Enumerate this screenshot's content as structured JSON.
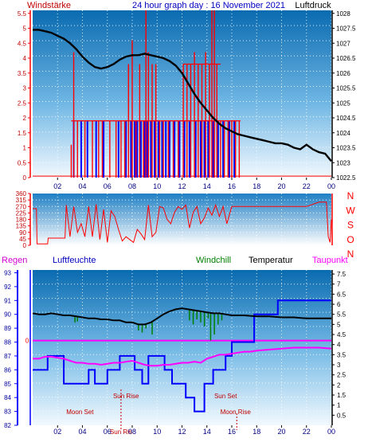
{
  "header": {
    "left_label": "Windstärke",
    "title": "24 hour graph day : 16 November 2021",
    "right_label": "Luftdruck"
  },
  "x_ticks": [
    "02",
    "04",
    "06",
    "08",
    "10",
    "12",
    "14",
    "16",
    "18",
    "20",
    "22",
    "00"
  ],
  "colors": {
    "red": "#ff0000",
    "blue": "#0000ff",
    "black": "#000000",
    "green": "#008000",
    "magenta": "#ff00ff",
    "dark_red": "#c00000"
  },
  "chart_data": [
    {
      "type": "line",
      "title": "24 hour graph day : 16 November 2021",
      "x_range": [
        0,
        24
      ],
      "x_tick_labels": [
        "02",
        "04",
        "06",
        "08",
        "10",
        "12",
        "14",
        "16",
        "18",
        "20",
        "22",
        "00"
      ],
      "left_axis": {
        "label": "Windstärke",
        "ticks": [
          "0",
          "0.5",
          "1",
          "1.5",
          "2",
          "2.5",
          "3",
          "3.5",
          "4",
          "4.5",
          "5",
          "5.5"
        ],
        "ylim": [
          0,
          5.6
        ]
      },
      "right_axis": {
        "label": "Luftdruck",
        "ticks": [
          "1022.5",
          "1023",
          "1023.5",
          "1024",
          "1024.5",
          "1025",
          "1025.5",
          "1026",
          "1026.5",
          "1027",
          "1027.5",
          "1028"
        ],
        "ylim": [
          1022.5,
          1028.1
        ]
      },
      "series": [
        {
          "name": "Luftdruck",
          "axis": "right",
          "color": "#000000",
          "x": [
            0,
            0.5,
            1,
            1.5,
            2,
            2.5,
            3,
            3.5,
            4,
            4.5,
            5,
            5.5,
            6,
            6.5,
            7,
            7.5,
            8,
            8.5,
            9,
            9.5,
            10,
            10.5,
            11,
            11.5,
            12,
            12.5,
            13,
            13.5,
            14,
            14.5,
            15,
            15.5,
            16,
            16.5,
            17,
            17.5,
            18,
            18.5,
            19,
            19.5,
            20,
            20.5,
            21,
            21.5,
            22,
            22.5,
            23,
            23.5,
            24
          ],
          "y": [
            1027.45,
            1027.45,
            1027.4,
            1027.35,
            1027.25,
            1027.15,
            1027.0,
            1026.8,
            1026.55,
            1026.35,
            1026.2,
            1026.15,
            1026.2,
            1026.3,
            1026.45,
            1026.55,
            1026.6,
            1026.6,
            1026.65,
            1026.6,
            1026.55,
            1026.5,
            1026.4,
            1026.25,
            1026.0,
            1025.65,
            1025.3,
            1025.0,
            1024.75,
            1024.5,
            1024.3,
            1024.15,
            1024.05,
            1023.95,
            1023.9,
            1023.85,
            1023.8,
            1023.75,
            1023.7,
            1023.65,
            1023.65,
            1023.6,
            1023.5,
            1023.45,
            1023.6,
            1023.45,
            1023.35,
            1023.3,
            1023.05
          ]
        },
        {
          "name": "Windgeschwindigkeit",
          "axis": "left",
          "color": "#ff0000",
          "render": "spikes",
          "x": [
            3.1,
            3.3,
            3.6,
            4.2,
            4.8,
            5.3,
            5.6,
            6.2,
            6.7,
            7.1,
            7.4,
            7.7,
            8.0,
            8.3,
            8.6,
            8.9,
            9.1,
            9.3,
            9.6,
            9.9,
            10.2,
            10.5,
            10.9,
            11.3,
            11.7,
            12.1,
            12.4,
            12.7,
            13.0,
            13.3,
            13.6,
            13.9,
            14.2,
            14.4,
            14.6,
            14.8,
            15.1,
            15.4,
            15.7,
            16.0,
            16.3,
            16.6
          ],
          "y": [
            1.1,
            4.2,
            1.9,
            1.9,
            1.9,
            1.9,
            1.9,
            1.9,
            1.9,
            1.9,
            1.9,
            3.8,
            4.6,
            1.9,
            3.8,
            1.9,
            5.6,
            4.2,
            3.8,
            3.8,
            1.9,
            1.9,
            1.9,
            1.9,
            1.9,
            3.8,
            3.8,
            3.8,
            4.2,
            3.8,
            3.8,
            4.2,
            3.8,
            5.6,
            5.6,
            3.8,
            1.9,
            1.9,
            1.9,
            1.9,
            1.9,
            1.9
          ]
        },
        {
          "name": "Windböen",
          "axis": "left",
          "color": "#0000ff",
          "render": "spikes",
          "x": [
            3.3,
            3.9,
            4.4,
            5.1,
            5.7,
            6.9,
            7.5,
            7.9,
            8.2,
            8.4,
            8.7,
            9.0,
            9.2,
            9.5,
            9.8,
            10.1,
            10.4,
            10.7,
            11.0,
            11.4,
            11.8,
            12.2,
            12.6,
            13.1,
            13.5,
            13.8,
            14.1,
            14.5,
            14.9,
            15.3,
            15.8,
            16.2
          ],
          "y": [
            1.9,
            1.9,
            1.9,
            1.9,
            1.9,
            1.9,
            1.9,
            1.9,
            1.9,
            1.9,
            1.9,
            1.9,
            1.9,
            1.9,
            1.9,
            1.9,
            1.9,
            1.9,
            1.9,
            1.9,
            1.9,
            1.9,
            1.9,
            1.9,
            1.9,
            1.9,
            1.9,
            1.9,
            1.9,
            1.9,
            1.9,
            1.9
          ]
        }
      ]
    },
    {
      "type": "line",
      "title": "",
      "x_range": [
        0,
        24
      ],
      "y_axis": {
        "ticks": [
          "0",
          "45",
          "90",
          "135",
          "180",
          "225",
          "270",
          "315",
          "360"
        ],
        "ylim": [
          0,
          360
        ]
      },
      "compass_labels": [
        "N",
        "W",
        "S",
        "O",
        "N"
      ],
      "series": [
        {
          "name": "Windrichtung",
          "color": "#ff0000",
          "x": [
            0,
            0.3,
            0.35,
            1.2,
            1.25,
            2.6,
            2.7,
            3.0,
            3.3,
            3.6,
            3.9,
            4.2,
            4.5,
            4.8,
            5.1,
            5.4,
            5.7,
            6.0,
            6.3,
            6.6,
            6.9,
            7.2,
            7.5,
            7.8,
            8.1,
            8.4,
            8.7,
            9.0,
            9.3,
            9.6,
            9.9,
            10.2,
            10.5,
            10.8,
            11.1,
            11.4,
            11.7,
            12.0,
            12.3,
            12.6,
            12.9,
            13.2,
            13.5,
            13.8,
            14.1,
            14.4,
            14.7,
            15.0,
            15.3,
            15.6,
            16.0,
            16.5,
            17,
            18,
            19,
            20,
            21,
            22,
            23.0,
            23.3,
            23.6,
            23.75,
            23.9,
            24.0
          ],
          "y": [
            255,
            255,
            10,
            10,
            50,
            50,
            280,
            60,
            270,
            90,
            150,
            60,
            270,
            60,
            285,
            40,
            250,
            20,
            240,
            200,
            110,
            30,
            60,
            40,
            20,
            110,
            80,
            40,
            280,
            60,
            90,
            270,
            260,
            180,
            150,
            230,
            270,
            250,
            280,
            120,
            230,
            270,
            150,
            190,
            260,
            210,
            280,
            200,
            270,
            150,
            270,
            270,
            270,
            270,
            270,
            270,
            270,
            270,
            300,
            300,
            300,
            60,
            20,
            180
          ]
        }
      ]
    },
    {
      "type": "line",
      "title": "",
      "x_range": [
        0,
        24
      ],
      "left_axis": {
        "label": "Regen",
        "ticks": [
          "82",
          "83",
          "84",
          "85",
          "86",
          "87",
          "88",
          "89",
          "90",
          "91",
          "92",
          "93"
        ],
        "ylim": [
          82,
          93.2
        ]
      },
      "right_axis": {
        "label": "Temperatur",
        "ticks": [
          "0.5",
          "1",
          "1.5",
          "2",
          "2.5",
          "3",
          "3.5",
          "4",
          "4.5",
          "5",
          "5.5",
          "6",
          "6.5",
          "7",
          "7.5"
        ],
        "ylim": [
          0,
          7.7
        ]
      },
      "legend": [
        "Regen",
        "Luftfeuchte",
        "Windchill",
        "Temperatur",
        "Taupunkt"
      ],
      "zero_marker": "0",
      "annotations": [
        "Sun Rise",
        "Sun Set",
        "Moon Set",
        "Moon Rise",
        "Sun Ris"
      ],
      "series": [
        {
          "name": "Luftfeuchte",
          "axis": "left",
          "color": "#0000ff",
          "x": [
            0,
            1.2,
            1.2,
            2.5,
            2.5,
            4.5,
            4.5,
            5.0,
            5.0,
            6.0,
            6.0,
            7.0,
            7.0,
            8.2,
            8.2,
            8.8,
            8.8,
            9.3,
            9.3,
            10.6,
            10.6,
            11.2,
            11.2,
            12.3,
            12.3,
            13.0,
            13.0,
            13.8,
            13.8,
            14.5,
            14.5,
            15.5,
            15.5,
            16.0,
            16.0,
            17.8,
            17.8,
            19.7,
            19.7,
            24
          ],
          "y": [
            86,
            86,
            87,
            87,
            85,
            85,
            86,
            86,
            85,
            85,
            86,
            86,
            87,
            87,
            86,
            86,
            85,
            85,
            87,
            87,
            86,
            86,
            85,
            85,
            84,
            84,
            83,
            83,
            85,
            85,
            86,
            86,
            87,
            87,
            88,
            88,
            90,
            90,
            91,
            91
          ]
        },
        {
          "name": "Temperatur",
          "axis": "right",
          "color": "#000000",
          "x": [
            0,
            0.5,
            1,
            1.5,
            2,
            2.5,
            3,
            3.5,
            4,
            4.5,
            5,
            5.5,
            6,
            6.5,
            7,
            7.5,
            8,
            8.5,
            9,
            9.5,
            10,
            10.5,
            11,
            11.5,
            12,
            12.5,
            13,
            13.5,
            14,
            14.5,
            15,
            15.5,
            16,
            16.5,
            17,
            18,
            19,
            20,
            21,
            22,
            23,
            24
          ],
          "y": [
            5.55,
            5.5,
            5.5,
            5.55,
            5.5,
            5.45,
            5.45,
            5.4,
            5.35,
            5.3,
            5.3,
            5.25,
            5.25,
            5.2,
            5.2,
            5.1,
            5.1,
            5.0,
            5.0,
            5.1,
            5.3,
            5.5,
            5.65,
            5.75,
            5.8,
            5.75,
            5.7,
            5.65,
            5.6,
            5.55,
            5.55,
            5.5,
            5.45,
            5.45,
            5.45,
            5.4,
            5.4,
            5.35,
            5.35,
            5.3,
            5.3,
            5.3
          ]
        },
        {
          "name": "Windchill",
          "axis": "right",
          "color": "#008000",
          "render": "dips",
          "x": [
            3.4,
            3.6,
            8.5,
            8.8,
            9.1,
            9.6,
            12.6,
            12.9,
            13.2,
            13.5,
            13.8,
            14.1,
            14.3,
            14.6,
            14.9,
            15.2
          ],
          "y": [
            5.1,
            5.15,
            4.7,
            4.6,
            4.8,
            4.5,
            5.2,
            5.0,
            5.25,
            5.1,
            4.9,
            5.3,
            4.2,
            4.5,
            5.0,
            5.2
          ]
        },
        {
          "name": "Taupunkt",
          "axis": "right",
          "color": "#ff00ff",
          "x": [
            0,
            0.5,
            1,
            1.5,
            2,
            2.5,
            3,
            3.5,
            4,
            4.5,
            5,
            5.5,
            6,
            6.5,
            7,
            7.5,
            8,
            8.5,
            9,
            9.5,
            10,
            10.5,
            11,
            11.5,
            12,
            12.5,
            13,
            13.5,
            14,
            14.5,
            15,
            15.5,
            16,
            16.5,
            17,
            17.5,
            18,
            19,
            20,
            21,
            22,
            23,
            24
          ],
          "y": [
            3.3,
            3.3,
            3.4,
            3.4,
            3.35,
            3.3,
            3.2,
            3.1,
            3.1,
            3.05,
            3.05,
            3.0,
            3.05,
            3.1,
            3.1,
            3.15,
            3.2,
            3.1,
            3.0,
            2.95,
            2.95,
            3.0,
            3.0,
            3.05,
            3.1,
            3.1,
            3.15,
            3.1,
            3.3,
            3.4,
            3.5,
            3.5,
            3.55,
            3.6,
            3.65,
            3.65,
            3.7,
            3.75,
            3.8,
            3.85,
            3.85,
            3.85,
            3.8
          ]
        },
        {
          "name": "Regen",
          "axis": "right",
          "color": "#ff00ff",
          "x": [
            0,
            24
          ],
          "y": [
            4.2,
            4.2
          ]
        }
      ]
    }
  ]
}
